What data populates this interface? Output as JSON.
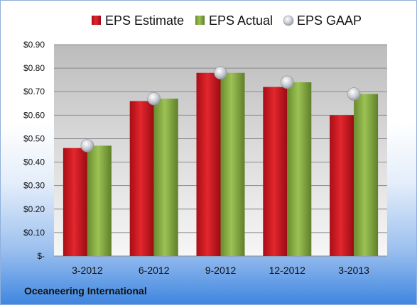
{
  "chart_data": {
    "type": "bar",
    "categories": [
      "3-2012",
      "6-2012",
      "9-2012",
      "12-2012",
      "3-2013"
    ],
    "series": [
      {
        "name": "EPS Estimate",
        "type": "bar",
        "color": "#c0141c",
        "values": [
          0.46,
          0.66,
          0.78,
          0.72,
          0.6
        ]
      },
      {
        "name": "EPS Actual",
        "type": "bar",
        "color": "#7ea23c",
        "values": [
          0.47,
          0.67,
          0.78,
          0.74,
          0.69
        ]
      },
      {
        "name": "EPS GAAP",
        "type": "scatter",
        "color": "#b8bcc4",
        "values": [
          0.47,
          0.67,
          0.78,
          0.74,
          0.69
        ]
      }
    ],
    "y_ticks": [
      "$-",
      "$0.10",
      "$0.20",
      "$0.30",
      "$0.40",
      "$0.50",
      "$0.60",
      "$0.70",
      "$0.80",
      "$0.90"
    ],
    "ylim": [
      0,
      0.9
    ],
    "grid": true,
    "legend_position": "top"
  },
  "footer": {
    "company": "Oceaneering International"
  }
}
